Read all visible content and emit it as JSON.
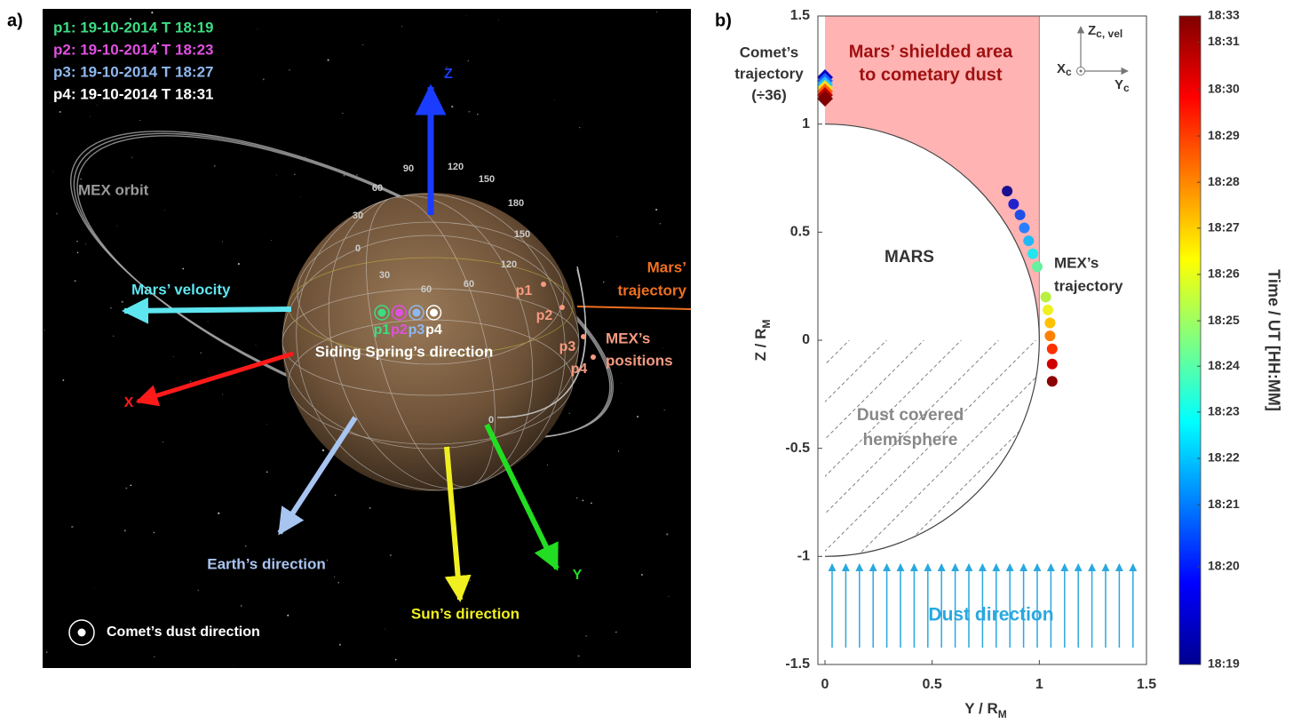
{
  "panel_a": {
    "label": "a)",
    "legend": [
      {
        "text": "p1: 19-10-2014 T 18:19",
        "color": "#3ddc84"
      },
      {
        "text": "p2: 19-10-2014 T 18:23",
        "color": "#e050e0"
      },
      {
        "text": "p3: 19-10-2014 T 18:27",
        "color": "#8fb8f0"
      },
      {
        "text": "p4: 19-10-2014 T 18:31",
        "color": "#ffffff"
      }
    ],
    "points": [
      "p1",
      "p2",
      "p3",
      "p4"
    ],
    "axes": {
      "x": "X",
      "y": "Y",
      "z": "Z"
    },
    "labels": {
      "mex_orbit": "MEX orbit",
      "mars_velocity": "Mars’ velocity",
      "mars_trajectory": [
        "Mars’",
        "trajectory"
      ],
      "mex_positions": [
        "MEX’s",
        "positions"
      ],
      "siding_spring": "Siding Spring’s direction",
      "earth": "Earth’s direction",
      "sun": "Sun’s direction",
      "comet_dust": "Comet’s dust direction"
    },
    "grid_labels": [
      "90",
      "120",
      "150",
      "180",
      "60",
      "30",
      "0",
      "30",
      "60",
      "60",
      "150",
      "120",
      "0"
    ]
  },
  "chart_data": {
    "type": "scatter",
    "label": "b)",
    "xlabel": {
      "text": "Y / R",
      "sub": "M"
    },
    "ylabel": {
      "text": "Z / R",
      "sub": "M"
    },
    "xlim": [
      0,
      1.5
    ],
    "ylim": [
      -1.5,
      1.5
    ],
    "xticks": [
      0,
      0.5,
      1,
      1.5
    ],
    "yticks": [
      -1.5,
      -1,
      -0.5,
      0,
      0.5,
      1,
      1.5
    ],
    "x": [
      0.85,
      0.88,
      0.91,
      0.93,
      0.95,
      0.97,
      0.99,
      1.03,
      1.04,
      1.05,
      1.05,
      1.06,
      1.06,
      1.06
    ],
    "values": [
      0.69,
      0.63,
      0.58,
      0.52,
      0.46,
      0.4,
      0.34,
      0.2,
      0.14,
      0.08,
      0.02,
      -0.04,
      -0.11,
      -0.19
    ],
    "colors": [
      "#1a0f8f",
      "#2222cc",
      "#1f4fe6",
      "#2a7fff",
      "#22b8f5",
      "#22e6ee",
      "#66f0a0",
      "#b8f040",
      "#f0f020",
      "#ffc000",
      "#ff8000",
      "#ff3000",
      "#d00000",
      "#8b0000"
    ],
    "annotations": {
      "shielded": [
        "Mars’ shielded area",
        "to cometary dust"
      ],
      "comet": [
        "Comet’s",
        "trajectory",
        "(÷36)"
      ],
      "mars": "MARS",
      "mex": [
        "MEX’s",
        "trajectory"
      ],
      "dust_covered": [
        "Dust covered",
        "hemisphere"
      ],
      "dust_direction": "Dust direction"
    },
    "frame": {
      "z": "Z",
      "z_sub": "c, vel",
      "x": "X",
      "x_sub": "c",
      "y": "Y",
      "y_sub": "c"
    },
    "colorbar": {
      "label": "Time / UT [HH:MM]",
      "clim": [
        19,
        33
      ],
      "colormap": [
        "#00008f",
        "#0000ff",
        "#0080ff",
        "#00ffff",
        "#80ff80",
        "#ffff00",
        "#ff8000",
        "#ff0000",
        "#800000"
      ],
      "ticks": [
        {
          "value": 19,
          "label": "18:19"
        },
        {
          "value": 21.11,
          "label": "18:20"
        },
        {
          "value": 22.45,
          "label": "18:21"
        },
        {
          "value": 23.45,
          "label": "18:22"
        },
        {
          "value": 24.45,
          "label": "18:23"
        },
        {
          "value": 25.44,
          "label": "18:24"
        },
        {
          "value": 26.42,
          "label": "18:25"
        },
        {
          "value": 27.42,
          "label": "18:26"
        },
        {
          "value": 28.42,
          "label": "18:27"
        },
        {
          "value": 29.41,
          "label": "18:28"
        },
        {
          "value": 30.41,
          "label": "18:29"
        },
        {
          "value": 31.41,
          "label": "18:30"
        },
        {
          "value": 32.44,
          "label": "18:31"
        },
        {
          "value": 33,
          "label": "18:33"
        }
      ]
    }
  }
}
